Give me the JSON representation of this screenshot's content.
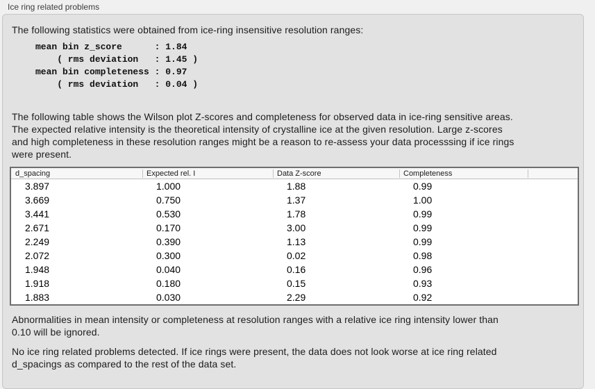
{
  "panel": {
    "title": "Ice ring related problems"
  },
  "intro": "The following statistics were obtained from ice-ring insensitive resolution ranges:",
  "stats": {
    "text": "mean bin z_score      : 1.84\n    ( rms deviation   : 1.45 )\nmean bin completeness : 0.97\n    ( rms deviation   : 0.04 )"
  },
  "description": "The following table shows the Wilson plot Z-scores and completeness for observed data in ice-ring sensitive areas.\nThe expected relative intensity is the theoretical intensity of crystalline ice at the given resolution. Large z-scores\nand high completeness in these resolution ranges might be a reason to re-assess your data processsing if ice rings\nwere present.",
  "table": {
    "columns": [
      "d_spacing",
      "Expected rel. I",
      "Data Z-score",
      "Completeness"
    ],
    "rows": [
      [
        "3.897",
        "1.000",
        "1.88",
        "0.99"
      ],
      [
        "3.669",
        "0.750",
        "1.37",
        "1.00"
      ],
      [
        "3.441",
        "0.530",
        "1.78",
        "0.99"
      ],
      [
        "2.671",
        "0.170",
        "3.00",
        "0.99"
      ],
      [
        "2.249",
        "0.390",
        "1.13",
        "0.99"
      ],
      [
        "2.072",
        "0.300",
        "0.02",
        "0.98"
      ],
      [
        "1.948",
        "0.040",
        "0.16",
        "0.96"
      ],
      [
        "1.918",
        "0.180",
        "0.15",
        "0.93"
      ],
      [
        "1.883",
        "0.030",
        "2.29",
        "0.92"
      ]
    ]
  },
  "ignore_note": "Abnormalities in mean intensity or completeness at resolution ranges with a relative ice ring intensity lower than\n0.10 will be ignored.",
  "conclusion": "No ice ring related problems detected. If ice rings were present, the data does not look worse at ice ring related\nd_spacings as compared to the rest of the data set."
}
